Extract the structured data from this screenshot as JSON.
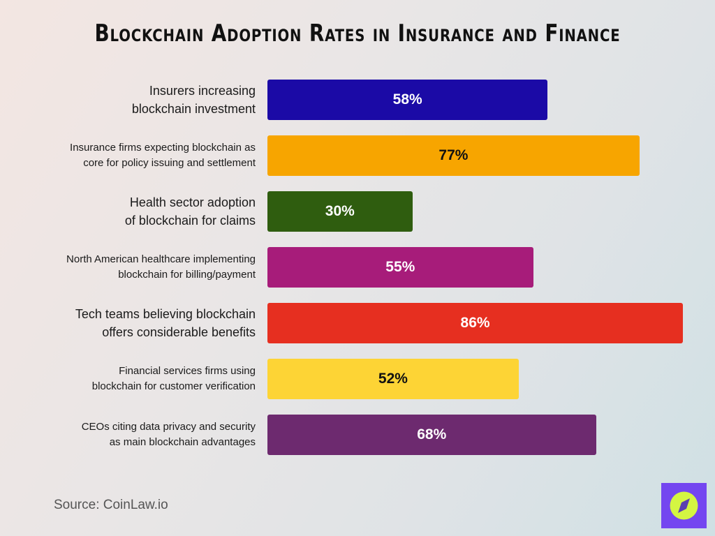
{
  "chart_data": {
    "type": "bar",
    "orientation": "horizontal",
    "title": "Blockchain Adoption Rates in Insurance and Finance",
    "categories": [
      "Insurers increasing\nblockchain investment",
      "Insurance firms expecting blockchain as\ncore for policy issuing and settlement",
      "Health sector adoption\nof blockchain for claims",
      "North American healthcare implementing\nblockchain for billing/payment",
      "Tech teams believing blockchain\noffers considerable benefits",
      "Financial services firms using\nblockchain for customer verification",
      "CEOs citing data privacy and security\nas main blockchain advantages"
    ],
    "values": [
      58,
      77,
      30,
      55,
      86,
      52,
      68
    ],
    "data_labels": [
      "58%",
      "77%",
      "30%",
      "55%",
      "86%",
      "52%",
      "68%"
    ],
    "colors": [
      "#1b0aa6",
      "#f7a500",
      "#2f5d0f",
      "#a71c7a",
      "#e62f20",
      "#fdd435",
      "#6d2a6f"
    ],
    "label_colors": [
      "#ffffff",
      "#111111",
      "#ffffff",
      "#ffffff",
      "#ffffff",
      "#111111",
      "#ffffff"
    ],
    "xlim": [
      0,
      100
    ],
    "grid": false
  },
  "source": "Source: CoinLaw.io",
  "logo": {
    "icon": "compass-icon",
    "color": "#7446f0",
    "accent": "#d4f542"
  }
}
